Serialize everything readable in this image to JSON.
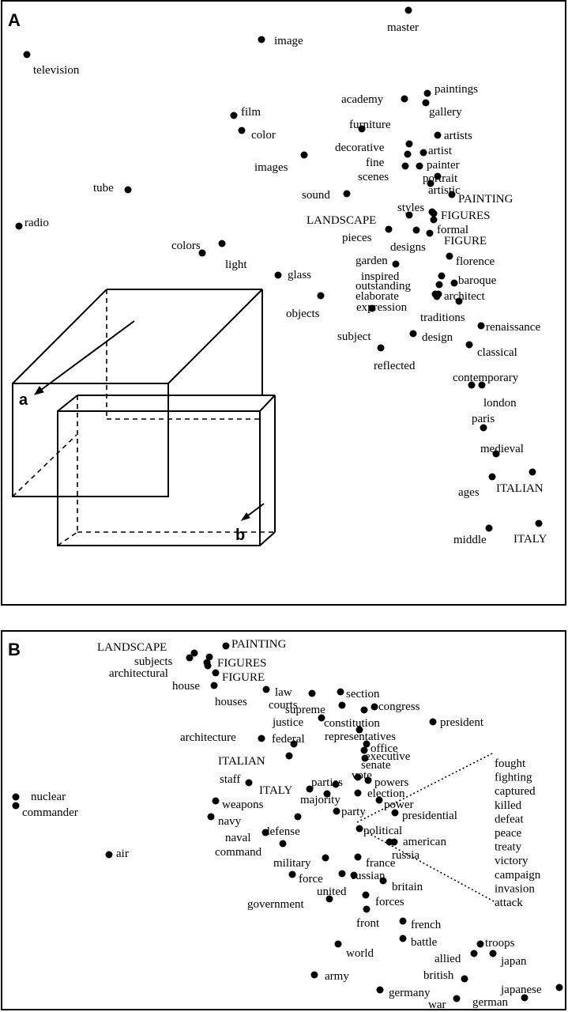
{
  "panels": {
    "a": {
      "label": "A"
    },
    "b": {
      "label": "B"
    }
  },
  "cube_labels": {
    "a": "a",
    "b": "b"
  },
  "panel_a_words": [
    {
      "t": "master"
    },
    {
      "t": "image"
    },
    {
      "t": "television"
    },
    {
      "t": "paintings"
    },
    {
      "t": "academy"
    },
    {
      "t": "gallery"
    },
    {
      "t": "film"
    },
    {
      "t": "color"
    },
    {
      "t": "furniture"
    },
    {
      "t": "artists"
    },
    {
      "t": "decorative"
    },
    {
      "t": "artist"
    },
    {
      "t": "fine"
    },
    {
      "t": "painter"
    },
    {
      "t": "images"
    },
    {
      "t": "scenes"
    },
    {
      "t": "portrait"
    },
    {
      "t": "artistic"
    },
    {
      "t": "tube"
    },
    {
      "t": "sound"
    },
    {
      "t": "PAINTING"
    },
    {
      "t": "styles"
    },
    {
      "t": "radio"
    },
    {
      "t": "LANDSCAPE"
    },
    {
      "t": "FIGURES"
    },
    {
      "t": "formal"
    },
    {
      "t": "pieces"
    },
    {
      "t": "designs"
    },
    {
      "t": "FIGURE"
    },
    {
      "t": "colors"
    },
    {
      "t": "light"
    },
    {
      "t": "garden"
    },
    {
      "t": "florence"
    },
    {
      "t": "glass"
    },
    {
      "t": "inspired"
    },
    {
      "t": "baroque"
    },
    {
      "t": "outstanding"
    },
    {
      "t": "elaborate"
    },
    {
      "t": "architect"
    },
    {
      "t": "objects"
    },
    {
      "t": "expression"
    },
    {
      "t": "traditions"
    },
    {
      "t": "renaissance"
    },
    {
      "t": "subject"
    },
    {
      "t": "design"
    },
    {
      "t": "classical"
    },
    {
      "t": "reflected"
    },
    {
      "t": "contemporary"
    },
    {
      "t": "london"
    },
    {
      "t": "paris"
    },
    {
      "t": "medieval"
    },
    {
      "t": "ages"
    },
    {
      "t": "ITALIAN"
    },
    {
      "t": "middle"
    },
    {
      "t": "ITALY"
    }
  ],
  "panel_b_words": [
    {
      "t": "LANDSCAPE"
    },
    {
      "t": "PAINTING"
    },
    {
      "t": "subjects"
    },
    {
      "t": "FIGURES"
    },
    {
      "t": "architectural"
    },
    {
      "t": "house"
    },
    {
      "t": "FIGURE"
    },
    {
      "t": "houses"
    },
    {
      "t": "law"
    },
    {
      "t": "section"
    },
    {
      "t": "courts"
    },
    {
      "t": "supreme"
    },
    {
      "t": "congress"
    },
    {
      "t": "justice"
    },
    {
      "t": "constitution"
    },
    {
      "t": "president"
    },
    {
      "t": "representatives"
    },
    {
      "t": "architecture"
    },
    {
      "t": "federal"
    },
    {
      "t": "office"
    },
    {
      "t": "executive"
    },
    {
      "t": "ITALIAN"
    },
    {
      "t": "senate"
    },
    {
      "t": "vote"
    },
    {
      "t": "parties"
    },
    {
      "t": "powers"
    },
    {
      "t": "staff"
    },
    {
      "t": "ITALY"
    },
    {
      "t": "election"
    },
    {
      "t": "majority"
    },
    {
      "t": "nuclear"
    },
    {
      "t": "weapons"
    },
    {
      "t": "power"
    },
    {
      "t": "commander"
    },
    {
      "t": "party"
    },
    {
      "t": "presidential"
    },
    {
      "t": "navy"
    },
    {
      "t": "defense"
    },
    {
      "t": "political"
    },
    {
      "t": "naval"
    },
    {
      "t": "american"
    },
    {
      "t": "command"
    },
    {
      "t": "russia"
    },
    {
      "t": "air"
    },
    {
      "t": "military"
    },
    {
      "t": "france"
    },
    {
      "t": "russian"
    },
    {
      "t": "force"
    },
    {
      "t": "britain"
    },
    {
      "t": "united"
    },
    {
      "t": "government"
    },
    {
      "t": "forces"
    },
    {
      "t": "front"
    },
    {
      "t": "french"
    },
    {
      "t": "battle"
    },
    {
      "t": "troops"
    },
    {
      "t": "world"
    },
    {
      "t": "allied"
    },
    {
      "t": "japan"
    },
    {
      "t": "british"
    },
    {
      "t": "army"
    },
    {
      "t": "japanese"
    },
    {
      "t": "germany"
    },
    {
      "t": "war"
    },
    {
      "t": "german"
    }
  ],
  "callout_words": [
    "fought",
    "fighting",
    "captured",
    "killed",
    "defeat",
    "peace",
    "treaty",
    "victory",
    "campaign",
    "invasion",
    "attack"
  ]
}
